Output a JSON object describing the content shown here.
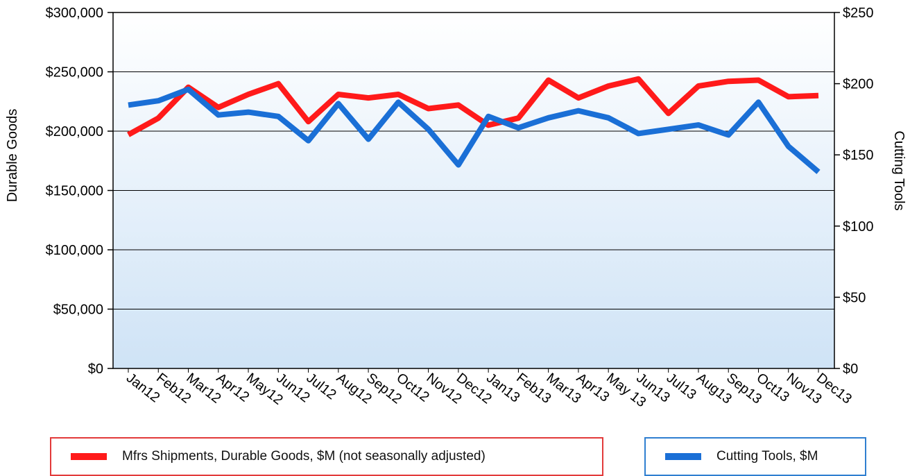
{
  "chart_data": {
    "type": "line",
    "categories": [
      "Jan12",
      "Feb12",
      "Mar12",
      "Apr12",
      "May12",
      "Jun12",
      "Jul12",
      "Aug12",
      "Sep12",
      "Oct12",
      "Nov12",
      "Dec12",
      "Jan13",
      "Feb13",
      "Mar13",
      "Apr13",
      "May 13",
      "Jun13",
      "Jul13",
      "Aug13",
      "Sep13",
      "Oct13",
      "Nov13",
      "Dec13"
    ],
    "ylabel_left": "Durable Goods",
    "ylabel_right": "Cutting Tools",
    "ylim_left": [
      0,
      300000
    ],
    "ylim_right": [
      0,
      250
    ],
    "yticks_left": [
      "$0",
      "$50,000",
      "$100,000",
      "$150,000",
      "$200,000",
      "$250,000",
      "$300,000"
    ],
    "yticks_right": [
      "$0",
      "$50",
      "$100",
      "$150",
      "$200",
      "$250"
    ],
    "grid": true,
    "series": [
      {
        "name": "Mfrs Shipments, Durable Goods, $M (not seasonally adjusted)",
        "axis": "left",
        "color": "#ff1a1a",
        "values": [
          197000,
          211000,
          237000,
          220000,
          231000,
          240000,
          208000,
          231000,
          228000,
          231000,
          219000,
          222000,
          205000,
          211000,
          243000,
          228000,
          238000,
          244000,
          215000,
          238000,
          242000,
          243000,
          229000,
          230000
        ]
      },
      {
        "name": "Cutting Tools, $M",
        "axis": "right",
        "color": "#1a6fd6",
        "values": [
          185,
          188,
          196,
          178,
          180,
          177,
          160,
          186,
          161,
          187,
          168,
          143,
          177,
          169,
          176,
          181,
          176,
          165,
          168,
          171,
          164,
          187,
          156,
          138
        ]
      }
    ]
  },
  "legend": {
    "red_label": "Mfrs Shipments, Durable Goods, $M (not seasonally adjusted)",
    "blue_label": "Cutting Tools, $M"
  }
}
